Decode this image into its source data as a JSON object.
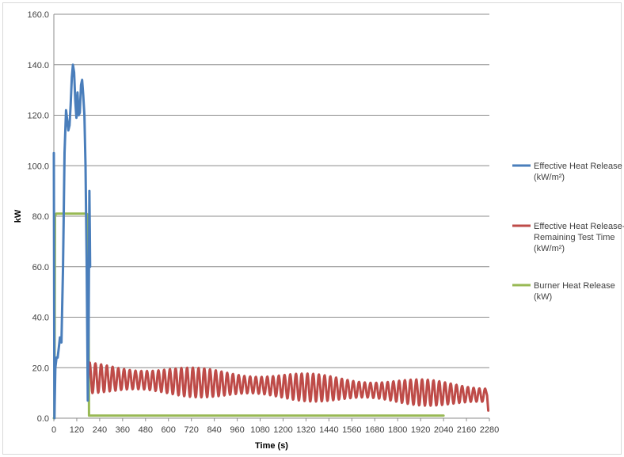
{
  "chart_data": {
    "type": "line",
    "title": "",
    "xlabel": "Time (s)",
    "ylabel": "kW",
    "xlim": [
      0,
      2280
    ],
    "ylim": [
      0,
      160
    ],
    "x_ticks": [
      0,
      120,
      240,
      360,
      480,
      600,
      720,
      840,
      960,
      1080,
      1200,
      1320,
      1440,
      1560,
      1680,
      1800,
      1920,
      2040,
      2160,
      2280
    ],
    "y_ticks": [
      "0.0",
      "20.0",
      "40.0",
      "60.0",
      "80.0",
      "100.0",
      "120.0",
      "140.0",
      "160.0"
    ],
    "grid": "horizontal",
    "legend_position": "right",
    "series": [
      {
        "name": "Effective Heat Release (kW/m²)",
        "legend_lines": [
          "Effective Heat Release",
          "(kW/m²)"
        ],
        "color": "#4a7ebb",
        "x": [
          0,
          3,
          8,
          14,
          20,
          26,
          32,
          40,
          48,
          56,
          64,
          70,
          76,
          82,
          88,
          94,
          100,
          106,
          112,
          118,
          124,
          130,
          136,
          142,
          148,
          154,
          160,
          166,
          172,
          178,
          182,
          186,
          188,
          190
        ],
        "y": [
          105,
          0,
          20,
          24,
          24,
          28,
          32,
          30,
          60,
          105,
          122,
          118,
          114,
          116,
          124,
          135,
          140,
          137,
          126,
          119,
          129,
          120,
          121,
          132,
          134,
          128,
          120,
          100,
          60,
          7,
          35,
          90,
          75,
          60
        ]
      },
      {
        "name": "Effective Heat Release-Remaining Test Time (kW/m²)",
        "legend_lines": [
          "Effective Heat Release-",
          "Remaining Test Time",
          "(kW/m²)"
        ],
        "color": "#be4b48",
        "x": [
          180,
          2280
        ],
        "y_avg_start": 16,
        "y_avg_end": 9,
        "y_min_end": 3,
        "oscillation_period_s": 30
      },
      {
        "name": "Burner Heat Release (kW)",
        "legend_lines": [
          "Burner Heat Release",
          "(kW)"
        ],
        "color": "#98b954",
        "x": [
          0,
          3,
          6,
          12,
          60,
          120,
          170,
          180,
          184,
          200,
          2040
        ],
        "y": [
          0,
          0,
          80,
          81,
          81,
          81,
          81,
          80.5,
          1,
          1,
          1
        ]
      }
    ]
  }
}
